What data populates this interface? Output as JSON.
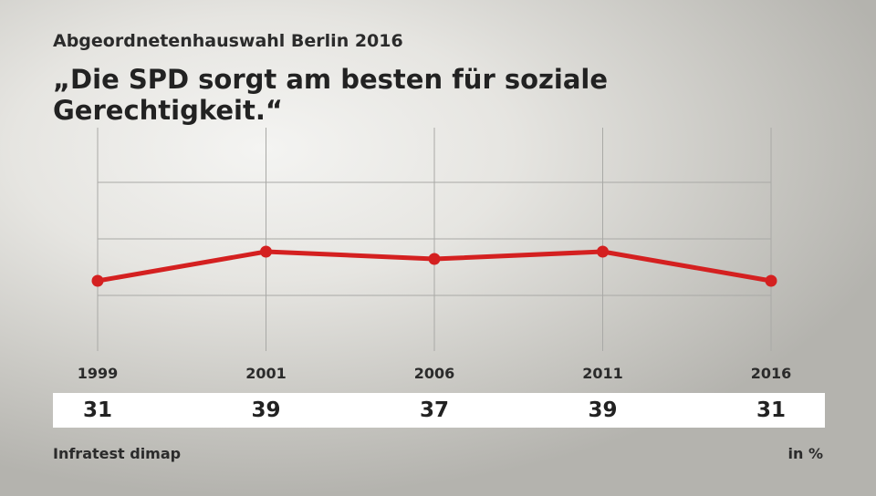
{
  "subtitle": "Abgeordnetenhauswahl Berlin 2016",
  "title": "„Die SPD sorgt am besten für soziale Gerechtigkeit.“",
  "source": "Infratest dimap",
  "unit": "in %",
  "colors": {
    "line": "#d42020",
    "grid": "#a9a9a6"
  },
  "chart_data": {
    "type": "line",
    "title": "„Die SPD sorgt am besten für soziale Gerechtigkeit.“",
    "categories": [
      "1999",
      "2001",
      "2006",
      "2011",
      "2016"
    ],
    "series": [
      {
        "name": "SPD",
        "values": [
          31,
          39,
          37,
          39,
          31
        ]
      }
    ],
    "xlabel": "",
    "ylabel": "",
    "ylim": [
      0,
      75
    ],
    "grid": true,
    "unit": "in %"
  }
}
